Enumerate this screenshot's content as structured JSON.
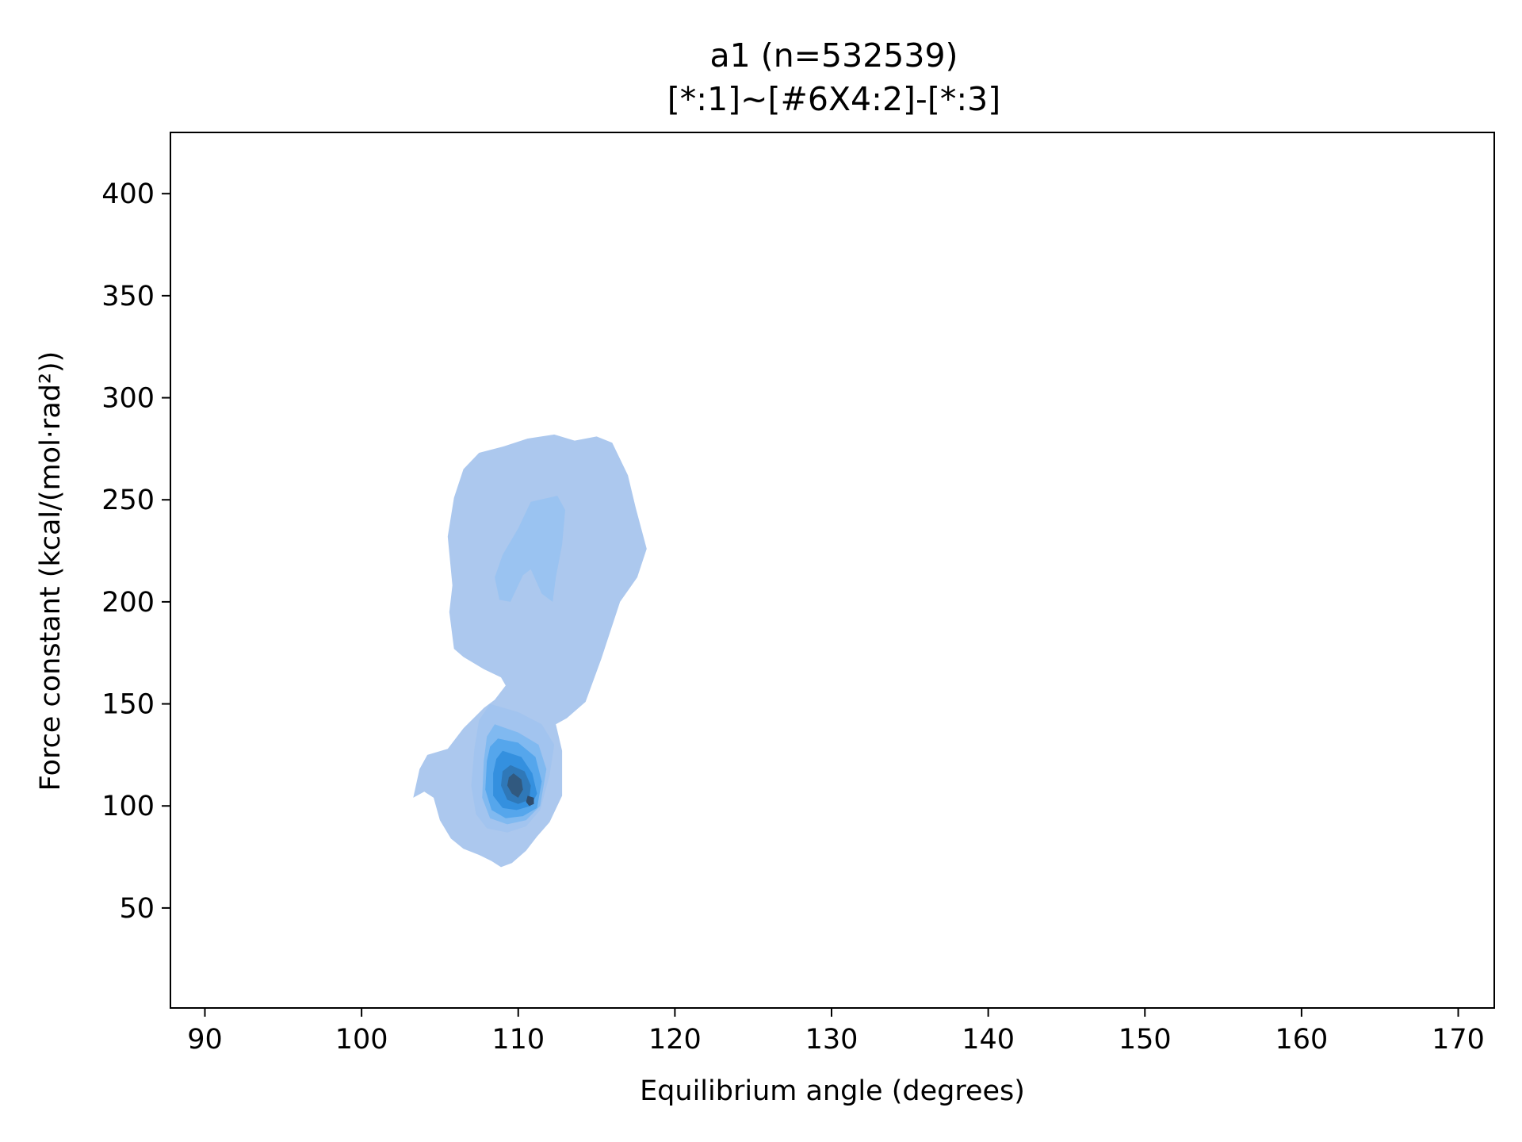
{
  "chart_data": {
    "type": "kde-contour",
    "title": "a1 (n=532539)",
    "subtitle": "[*:1]~[#6X4:2]-[*:3]",
    "xlabel": "Equilibrium angle (degrees)",
    "ylabel": "Force constant (kcal/(mol·rad²))",
    "xlim": [
      87.8,
      172.3
    ],
    "ylim": [
      1,
      430
    ],
    "x_ticks": [
      90,
      100,
      110,
      120,
      130,
      140,
      150,
      160,
      170
    ],
    "y_ticks": [
      50,
      100,
      150,
      200,
      250,
      300,
      350,
      400
    ],
    "grid": false,
    "legend": "none",
    "n": 532539,
    "modes": [
      {
        "label": "primary",
        "x": 110,
        "y": 110
      },
      {
        "label": "secondary",
        "x": 112,
        "y": 225
      }
    ],
    "levels": [
      {
        "level": 1,
        "color": "#acc8ee",
        "polygon": [
          [
            115.0,
            281
          ],
          [
            116.0,
            278
          ],
          [
            117.0,
            262
          ],
          [
            117.5,
            246
          ],
          [
            118.2,
            226
          ],
          [
            117.6,
            212
          ],
          [
            116.5,
            200
          ],
          [
            115.3,
            172
          ],
          [
            114.3,
            151
          ],
          [
            113.1,
            143
          ],
          [
            112.4,
            140
          ],
          [
            112.8,
            127
          ],
          [
            112.8,
            105
          ],
          [
            112.0,
            92
          ],
          [
            111.2,
            85
          ],
          [
            110.5,
            78
          ],
          [
            109.6,
            72
          ],
          [
            108.9,
            70
          ],
          [
            108.3,
            73
          ],
          [
            107.5,
            76
          ],
          [
            106.5,
            79
          ],
          [
            105.7,
            84
          ],
          [
            105.0,
            93
          ],
          [
            104.6,
            104
          ],
          [
            104.0,
            107
          ],
          [
            103.3,
            104
          ],
          [
            103.7,
            118
          ],
          [
            104.2,
            125
          ],
          [
            105.5,
            128
          ],
          [
            106.5,
            138
          ],
          [
            107.8,
            148
          ],
          [
            108.5,
            152
          ],
          [
            109.2,
            159
          ],
          [
            108.9,
            163
          ],
          [
            107.8,
            167
          ],
          [
            106.5,
            173
          ],
          [
            105.9,
            177
          ],
          [
            105.6,
            195
          ],
          [
            105.8,
            208
          ],
          [
            105.5,
            232
          ],
          [
            105.9,
            251
          ],
          [
            106.5,
            265
          ],
          [
            107.5,
            273
          ],
          [
            109.0,
            276
          ],
          [
            110.6,
            280
          ],
          [
            112.3,
            282
          ],
          [
            113.6,
            279
          ]
        ]
      },
      {
        "level": 2,
        "color": "#a2c4ef",
        "polygon": [
          [
            108.2,
            150
          ],
          [
            110.0,
            146
          ],
          [
            111.5,
            140
          ],
          [
            112.3,
            130
          ],
          [
            112.0,
            115
          ],
          [
            111.4,
            98
          ],
          [
            110.5,
            90
          ],
          [
            109.3,
            87
          ],
          [
            108.0,
            89
          ],
          [
            107.3,
            96
          ],
          [
            107.0,
            110
          ],
          [
            107.2,
            128
          ],
          [
            107.5,
            142
          ]
        ]
      },
      {
        "level": 3,
        "color": "#9ac3f1",
        "polygon": [
          [
            110.8,
            249
          ],
          [
            112.5,
            252
          ],
          [
            113.0,
            245
          ],
          [
            112.8,
            228
          ],
          [
            112.4,
            212
          ],
          [
            112.2,
            200
          ],
          [
            111.5,
            204
          ],
          [
            110.8,
            216
          ],
          [
            110.3,
            213
          ],
          [
            109.5,
            200
          ],
          [
            108.8,
            201
          ],
          [
            108.5,
            212
          ],
          [
            109.0,
            223
          ],
          [
            110.0,
            236
          ]
        ]
      },
      {
        "level": 4,
        "color": "#80b9f0",
        "polygon": [
          [
            108.5,
            140
          ],
          [
            110.0,
            136
          ],
          [
            111.3,
            130
          ],
          [
            111.8,
            118
          ],
          [
            111.4,
            100
          ],
          [
            110.5,
            93
          ],
          [
            109.3,
            91
          ],
          [
            108.2,
            94
          ],
          [
            107.7,
            104
          ],
          [
            107.8,
            122
          ],
          [
            108.0,
            134
          ]
        ]
      },
      {
        "level": 5,
        "color": "#55a6ec",
        "polygon": [
          [
            108.7,
            133
          ],
          [
            110.0,
            131
          ],
          [
            111.1,
            124
          ],
          [
            111.5,
            112
          ],
          [
            111.2,
            99
          ],
          [
            110.3,
            95
          ],
          [
            109.2,
            94
          ],
          [
            108.3,
            98
          ],
          [
            107.9,
            108
          ],
          [
            108.0,
            122
          ],
          [
            108.2,
            129
          ]
        ]
      },
      {
        "level": 6,
        "color": "#3490df",
        "polygon": [
          [
            109.0,
            127
          ],
          [
            110.2,
            124
          ],
          [
            110.9,
            116
          ],
          [
            111.2,
            106
          ],
          [
            110.8,
            100
          ],
          [
            109.9,
            98
          ],
          [
            109.0,
            99
          ],
          [
            108.4,
            105
          ],
          [
            108.4,
            116
          ],
          [
            108.6,
            123
          ]
        ]
      },
      {
        "level": 7,
        "color": "#2f78b8",
        "polygon": [
          [
            109.5,
            120
          ],
          [
            110.4,
            117
          ],
          [
            110.8,
            110
          ],
          [
            110.7,
            103
          ],
          [
            110.0,
            101
          ],
          [
            109.3,
            103
          ],
          [
            108.9,
            110
          ],
          [
            109.0,
            117
          ]
        ]
      },
      {
        "level": 8,
        "color": "#31597f",
        "polygon": [
          [
            109.7,
            116
          ],
          [
            110.2,
            113
          ],
          [
            110.3,
            108
          ],
          [
            110.0,
            104
          ],
          [
            109.6,
            106
          ],
          [
            109.3,
            110
          ],
          [
            109.4,
            114
          ]
        ]
      },
      {
        "level": 9,
        "color": "#2f4d6e",
        "polygon": [
          [
            110.6,
            105
          ],
          [
            111.0,
            104
          ],
          [
            111.0,
            101
          ],
          [
            110.7,
            100
          ],
          [
            110.5,
            102
          ]
        ]
      }
    ]
  }
}
